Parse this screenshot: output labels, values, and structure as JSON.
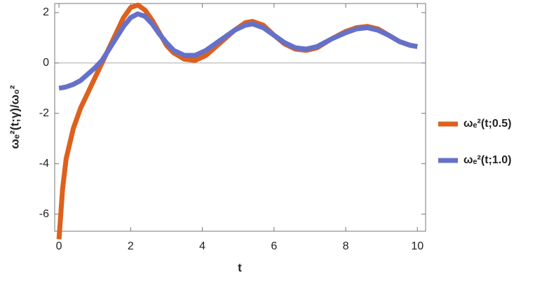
{
  "chart_data": {
    "type": "line",
    "x_label": "t",
    "y_label": "ωₑ²(t;γ)/ω₀²",
    "x": [
      0,
      0.1,
      0.2,
      0.4,
      0.6,
      0.8,
      1.0,
      1.2,
      1.4,
      1.6,
      1.8,
      2.0,
      2.2,
      2.4,
      2.6,
      2.8,
      3.0,
      3.2,
      3.5,
      3.8,
      4.1,
      4.5,
      4.9,
      5.2,
      5.4,
      5.7,
      6.0,
      6.3,
      6.6,
      6.9,
      7.2,
      7.6,
      8.0,
      8.3,
      8.6,
      8.9,
      9.2,
      9.5,
      9.8,
      10
    ],
    "series": [
      {
        "name": "ωₑ²(t;0.5)",
        "color": "#dd611d",
        "values": [
          -7,
          -5,
          -3.8,
          -2.6,
          -1.8,
          -1.2,
          -0.6,
          0,
          0.6,
          1.2,
          1.8,
          2.2,
          2.3,
          2.1,
          1.7,
          1.2,
          0.7,
          0.4,
          0.15,
          0.1,
          0.3,
          0.8,
          1.3,
          1.6,
          1.65,
          1.5,
          1.1,
          0.75,
          0.55,
          0.5,
          0.6,
          0.95,
          1.25,
          1.4,
          1.45,
          1.35,
          1.1,
          0.85,
          0.7,
          0.65
        ]
      },
      {
        "name": "ωₑ²(t;1.0)",
        "color": "#6571c8",
        "values": [
          -1,
          -0.98,
          -0.95,
          -0.85,
          -0.7,
          -0.45,
          -0.2,
          0.1,
          0.55,
          1.0,
          1.45,
          1.8,
          1.95,
          1.85,
          1.55,
          1.15,
          0.8,
          0.5,
          0.3,
          0.3,
          0.5,
          0.9,
          1.3,
          1.5,
          1.55,
          1.4,
          1.1,
          0.8,
          0.6,
          0.55,
          0.65,
          0.95,
          1.2,
          1.35,
          1.4,
          1.3,
          1.1,
          0.85,
          0.7,
          0.65
        ]
      }
    ],
    "xlim": [
      -0.12,
      10.23
    ],
    "ylim": [
      -6.68,
      2.36
    ],
    "xticks": [
      0,
      2,
      4,
      6,
      8,
      10
    ],
    "yticks": [
      -6,
      -4,
      -2,
      0,
      2
    ],
    "legend": "right"
  }
}
